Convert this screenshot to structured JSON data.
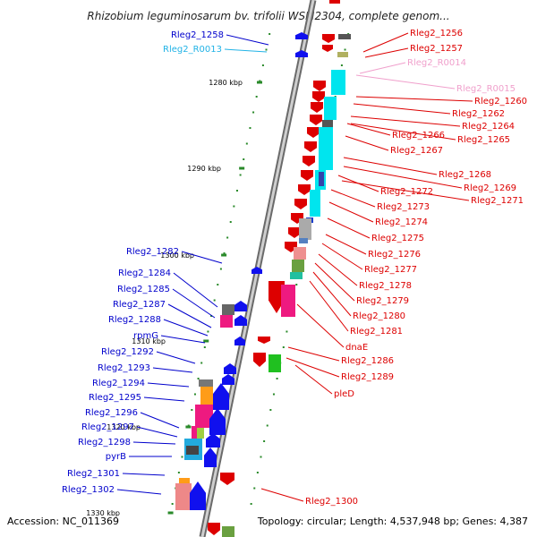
{
  "title": "Rhizobium leguminosarum bv. trifolii WSM2304, complete genom...",
  "footer": {
    "accession": "Accession: NC_011369",
    "summary": "Topology: circular; Length: 4,537,948 bp; Genes: 4,387"
  },
  "colors": {
    "forward_label": "#0000cc",
    "reverse_label": "#dd0000",
    "forward_rna_label": "#22b3e6",
    "reverse_rna_label": "#f0a0cc",
    "backbone": "#888888"
  },
  "ticks": [
    "1280 kbp",
    "1290 kbp",
    "1300 kbp",
    "1310 kbp",
    "1320 kbp",
    "1330 kbp"
  ],
  "left_labels": [
    "Rleg2_1258",
    "Rleg2_R0013",
    "Rleg2_1282",
    "Rleg2_1284",
    "Rleg2_1285",
    "Rleg2_1287",
    "Rleg2_1288",
    "rpmG",
    "Rleg2_1292",
    "Rleg2_1293",
    "Rleg2_1294",
    "Rleg2_1295",
    "Rleg2_1296",
    "Rleg2_1297",
    "Rleg2_1298",
    "pyrB",
    "Rleg2_1301",
    "Rleg2_1302"
  ],
  "right_labels": [
    "Rleg2_1256",
    "Rleg2_1257",
    "Rleg2_R0014",
    "Rleg2_R0015",
    "Rleg2_1260",
    "Rleg2_1262",
    "Rleg2_1264",
    "Rleg2_1266",
    "Rleg2_1265",
    "Rleg2_1267",
    "Rleg2_1268",
    "Rleg2_1269",
    "Rleg2_1272",
    "Rleg2_1271",
    "Rleg2_1273",
    "Rleg2_1274",
    "Rleg2_1275",
    "Rleg2_1276",
    "Rleg2_1277",
    "Rleg2_1278",
    "Rleg2_1279",
    "Rleg2_1280",
    "Rleg2_1281",
    "dnaE",
    "Rleg2_1286",
    "Rleg2_1289",
    "pleD",
    "Rleg2_1300"
  ]
}
